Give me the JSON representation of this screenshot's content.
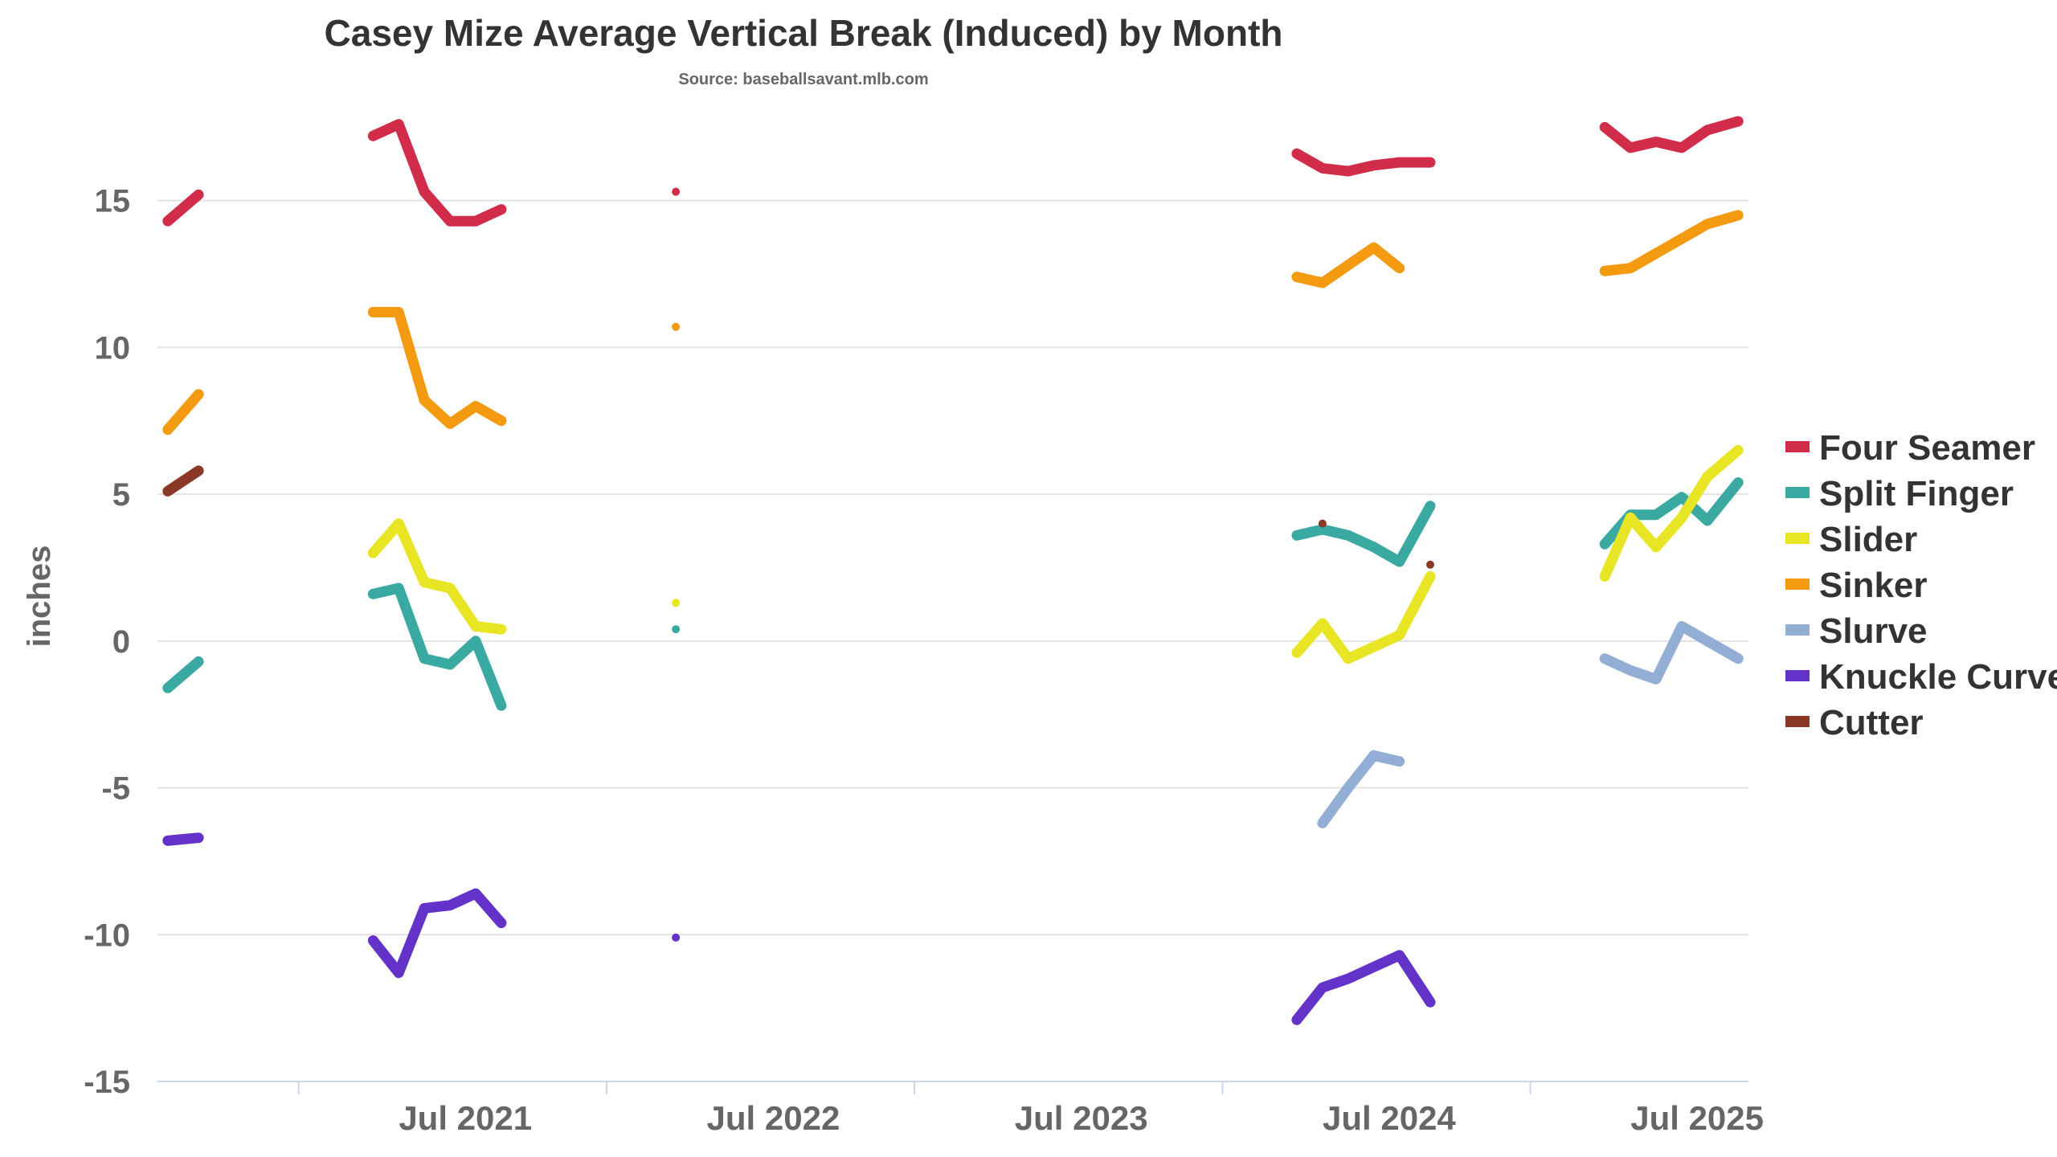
{
  "chart_data": {
    "type": "line",
    "title": "Casey Mize Average Vertical Break (Induced) by Month",
    "subtitle": "Source: baseballsavant.mlb.com",
    "xlabel": "",
    "ylabel": "inches",
    "ylim": [
      -15,
      18
    ],
    "yticks": [
      15,
      10,
      5,
      0,
      -5,
      -10,
      -15
    ],
    "ytick_labels": [
      "15",
      "10",
      "5",
      "0",
      "-5",
      "-10",
      "-15"
    ],
    "xlim": [
      0,
      62
    ],
    "xtick_labels": [
      {
        "label": "Jul 2021",
        "x": 12
      },
      {
        "label": "Jul 2022",
        "x": 24
      },
      {
        "label": "Jul 2023",
        "x": 36
      },
      {
        "label": "Jul 2024",
        "x": 48
      },
      {
        "label": "Jul 2025",
        "x": 60
      }
    ],
    "minor_ticks": [
      5.5,
      17.5,
      29.5,
      41.5,
      53.5
    ],
    "legend_position": "right",
    "series": [
      {
        "name": "Four Seamer",
        "color": "#d12d4a",
        "segments": [
          [
            [
              0.4,
              14.3
            ],
            [
              1.6,
              15.2
            ]
          ],
          [
            [
              8.4,
              17.2
            ],
            [
              9.4,
              17.6
            ],
            [
              10.4,
              15.3
            ],
            [
              11.4,
              14.3
            ],
            [
              12.4,
              14.3
            ],
            [
              13.4,
              14.7
            ]
          ],
          [
            [
              20.2,
              15.3
            ]
          ],
          [
            [
              44.4,
              16.6
            ],
            [
              45.4,
              16.1
            ],
            [
              46.4,
              16.0
            ],
            [
              47.4,
              16.2
            ],
            [
              48.4,
              16.3
            ],
            [
              49.6,
              16.3
            ]
          ],
          [
            [
              56.4,
              17.5
            ],
            [
              57.4,
              16.8
            ],
            [
              58.4,
              17.0
            ],
            [
              59.4,
              16.8
            ],
            [
              60.4,
              17.4
            ],
            [
              61.6,
              17.7
            ]
          ]
        ]
      },
      {
        "name": "Split Finger",
        "color": "#39a9a2",
        "segments": [
          [
            [
              0.4,
              -1.6
            ],
            [
              1.6,
              -0.7
            ]
          ],
          [
            [
              8.4,
              1.6
            ],
            [
              9.4,
              1.8
            ],
            [
              10.4,
              -0.6
            ],
            [
              11.4,
              -0.8
            ],
            [
              12.4,
              0.0
            ],
            [
              13.4,
              -2.2
            ]
          ],
          [
            [
              20.2,
              0.4
            ]
          ],
          [
            [
              44.4,
              3.6
            ],
            [
              45.4,
              3.8
            ],
            [
              46.4,
              3.6
            ],
            [
              47.4,
              3.2
            ],
            [
              48.4,
              2.7
            ],
            [
              49.6,
              4.6
            ]
          ],
          [
            [
              56.4,
              3.3
            ],
            [
              57.4,
              4.3
            ],
            [
              58.4,
              4.3
            ],
            [
              59.4,
              4.9
            ],
            [
              60.4,
              4.1
            ],
            [
              61.6,
              5.4
            ]
          ]
        ]
      },
      {
        "name": "Slider",
        "color": "#e8e524",
        "segments": [
          [
            [
              8.4,
              3.0
            ],
            [
              9.4,
              4.0
            ],
            [
              10.4,
              2.0
            ],
            [
              11.4,
              1.8
            ],
            [
              12.4,
              0.5
            ],
            [
              13.4,
              0.4
            ]
          ],
          [
            [
              20.2,
              1.3
            ]
          ],
          [
            [
              44.4,
              -0.4
            ],
            [
              45.4,
              0.6
            ],
            [
              46.4,
              -0.6
            ],
            [
              47.4,
              -0.2
            ],
            [
              48.4,
              0.2
            ],
            [
              49.6,
              2.2
            ]
          ],
          [
            [
              56.4,
              2.2
            ],
            [
              57.4,
              4.2
            ],
            [
              58.4,
              3.2
            ],
            [
              59.4,
              4.2
            ],
            [
              60.4,
              5.6
            ],
            [
              61.6,
              6.5
            ]
          ]
        ]
      },
      {
        "name": "Sinker",
        "color": "#f39a10",
        "segments": [
          [
            [
              0.4,
              7.2
            ],
            [
              1.6,
              8.4
            ]
          ],
          [
            [
              8.4,
              11.2
            ],
            [
              9.4,
              11.2
            ],
            [
              10.4,
              8.2
            ],
            [
              11.4,
              7.4
            ],
            [
              12.4,
              8.0
            ],
            [
              13.4,
              7.5
            ]
          ],
          [
            [
              20.2,
              10.7
            ]
          ],
          [
            [
              44.4,
              12.4
            ],
            [
              45.4,
              12.2
            ],
            [
              46.4,
              12.8
            ],
            [
              47.4,
              13.4
            ],
            [
              48.4,
              12.7
            ]
          ],
          [
            [
              56.4,
              12.6
            ],
            [
              57.4,
              12.7
            ],
            [
              58.4,
              13.2
            ],
            [
              59.4,
              13.7
            ],
            [
              60.4,
              14.2
            ],
            [
              61.6,
              14.5
            ]
          ]
        ]
      },
      {
        "name": "Slurve",
        "color": "#93aed5",
        "segments": [
          [
            [
              45.4,
              -6.2
            ],
            [
              46.4,
              -5.0
            ],
            [
              47.4,
              -3.9
            ],
            [
              48.4,
              -4.1
            ]
          ],
          [
            [
              56.4,
              -0.6
            ],
            [
              57.4,
              -1.0
            ],
            [
              58.4,
              -1.3
            ],
            [
              59.4,
              0.5
            ],
            [
              60.4,
              0.0
            ],
            [
              61.6,
              -0.6
            ]
          ]
        ]
      },
      {
        "name": "Knuckle Curve",
        "color": "#6232c9",
        "segments": [
          [
            [
              0.4,
              -6.8
            ],
            [
              1.6,
              -6.7
            ]
          ],
          [
            [
              8.4,
              -10.2
            ],
            [
              9.4,
              -11.3
            ],
            [
              10.4,
              -9.1
            ],
            [
              11.4,
              -9.0
            ],
            [
              12.4,
              -8.6
            ],
            [
              13.4,
              -9.6
            ]
          ],
          [
            [
              20.2,
              -10.1
            ]
          ],
          [
            [
              44.4,
              -12.9
            ],
            [
              45.4,
              -11.8
            ],
            [
              46.4,
              -11.5
            ],
            [
              47.4,
              -11.1
            ],
            [
              48.4,
              -10.7
            ],
            [
              49.6,
              -12.3
            ]
          ]
        ]
      },
      {
        "name": "Cutter",
        "color": "#8b3826",
        "segments": [
          [
            [
              0.4,
              5.1
            ],
            [
              1.6,
              5.8
            ]
          ],
          [
            [
              45.4,
              4.0
            ]
          ],
          [
            [
              49.6,
              2.6
            ]
          ]
        ]
      }
    ]
  }
}
